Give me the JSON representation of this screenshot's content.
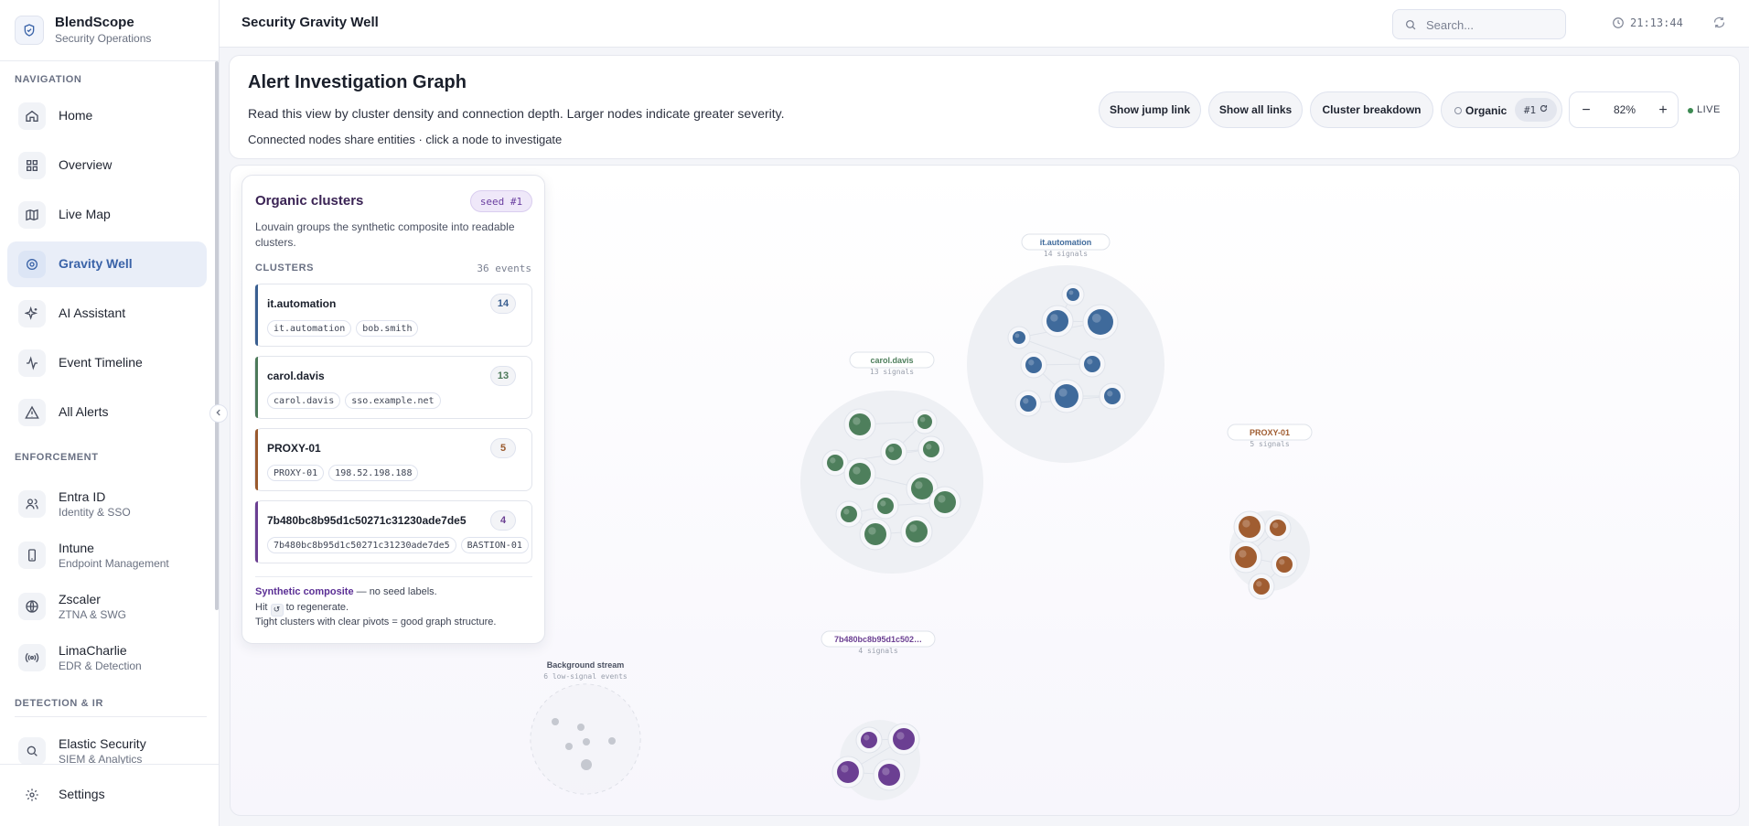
{
  "app": {
    "name": "BlendScope",
    "subtitle": "Security Operations"
  },
  "sidebar": {
    "navigation_label": "NAVIGATION",
    "nav": [
      {
        "label": "Home",
        "icon": "home-icon"
      },
      {
        "label": "Overview",
        "icon": "grid-icon"
      },
      {
        "label": "Live Map",
        "icon": "map-icon"
      },
      {
        "label": "Gravity Well",
        "icon": "gravity-well-icon",
        "active": true
      },
      {
        "label": "AI Assistant",
        "icon": "sparkles-icon"
      },
      {
        "label": "Event Timeline",
        "icon": "activity-icon"
      },
      {
        "label": "All Alerts",
        "icon": "alert-triangle-icon"
      }
    ],
    "enforcement_label": "ENFORCEMENT",
    "enforcement": [
      {
        "label": "Entra ID",
        "sub": "Identity & SSO",
        "icon": "users-icon"
      },
      {
        "label": "Intune",
        "sub": "Endpoint Management",
        "icon": "smartphone-icon"
      },
      {
        "label": "Zscaler",
        "sub": "ZTNA & SWG",
        "icon": "globe-icon"
      },
      {
        "label": "LimaCharlie",
        "sub": "EDR & Detection",
        "icon": "radio-icon"
      }
    ],
    "detection_label": "DETECTION & IR",
    "detection": [
      {
        "label": "Elastic Security",
        "sub": "SIEM & Analytics",
        "icon": "search-icon"
      }
    ],
    "settings_label": "Settings"
  },
  "topbar": {
    "title": "Security Gravity Well",
    "search_placeholder": "Search...",
    "time": "21:13:44"
  },
  "header": {
    "title": "Alert Investigation Graph",
    "description": "Read this view by cluster density and connection depth. Larger nodes indicate greater severity.",
    "meta": "Connected nodes share entities · click a node to investigate",
    "buttons": {
      "jump": "Show jump link",
      "all_links": "Show all links",
      "breakdown": "Cluster breakdown"
    },
    "mode": "Organic",
    "seed": "#1",
    "zoom": "82%",
    "live": "LIVE"
  },
  "panel": {
    "title": "Organic clusters",
    "seed_badge": "seed #1",
    "description": "Louvain groups the synthetic composite into readable clusters.",
    "clusters_label": "CLUSTERS",
    "events": "36 events",
    "clusters": [
      {
        "name": "it.automation",
        "count": "14",
        "tags": [
          "it.automation",
          "bob.smith"
        ],
        "color": "#3a5f91"
      },
      {
        "name": "carol.davis",
        "count": "13",
        "tags": [
          "carol.davis",
          "sso.example.net"
        ],
        "color": "#4d7a5a"
      },
      {
        "name": "PROXY-01",
        "count": "5",
        "tags": [
          "PROXY-01",
          "198.52.198.188"
        ],
        "color": "#9a5a2e"
      },
      {
        "name": "7b480bc8b95d1c50271c31230ade7de5",
        "count": "4",
        "tags": [
          "7b480bc8b95d1c50271c31230ade7de5",
          "BASTION-01"
        ],
        "color": "#6b3f92"
      }
    ],
    "footer": {
      "strong": "Synthetic composite",
      "rest": " — no seed labels.",
      "hit": "Hit",
      "regen": "to regenerate.",
      "tip": "Tight clusters with clear pivots = good graph structure."
    }
  },
  "graph": {
    "clusters": [
      {
        "label": "it.automation",
        "sub": "14 signals",
        "color": "#3f6a9b"
      },
      {
        "label": "carol.davis",
        "sub": "13 signals",
        "color": "#4e7f5c"
      },
      {
        "label": "PROXY-01",
        "sub": "5 signals",
        "color": "#a05d31"
      },
      {
        "label": "7b480bc8b95d1c502…",
        "sub": "4 signals",
        "color": "#6b3f92"
      },
      {
        "label": "Background stream",
        "sub": "6 low-signal events",
        "color": "#c5c8d0"
      }
    ]
  }
}
